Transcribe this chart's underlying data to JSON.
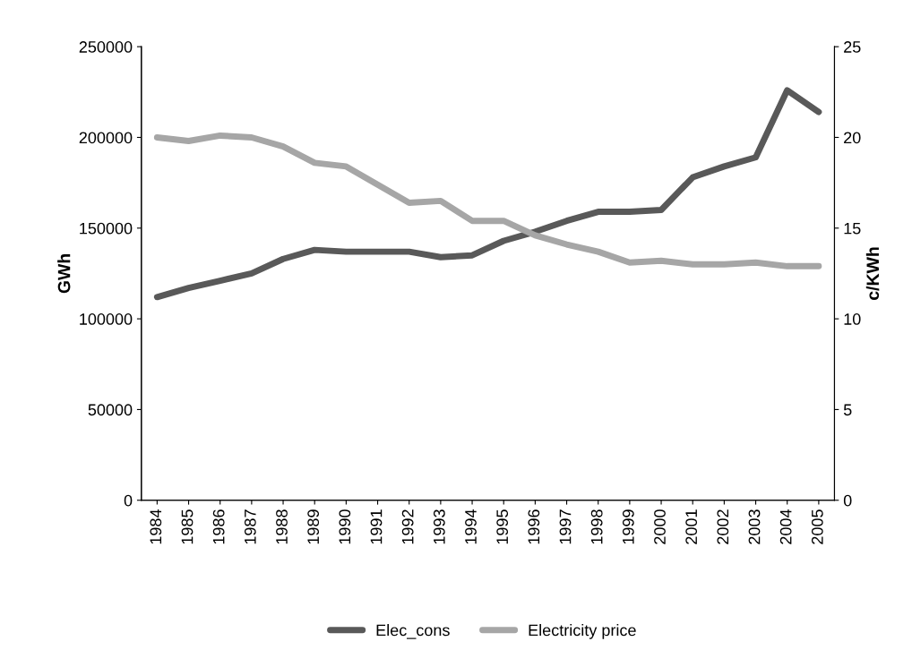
{
  "chart_data": {
    "type": "line",
    "ylabel": "GWh",
    "y2label": "c/KWh",
    "categories": [
      "1984",
      "1985",
      "1986",
      "1987",
      "1988",
      "1989",
      "1990",
      "1991",
      "1992",
      "1993",
      "1994",
      "1995",
      "1996",
      "1997",
      "1998",
      "1999",
      "2000",
      "2001",
      "2002",
      "2003",
      "2004",
      "2005"
    ],
    "series": [
      {
        "name": "Elec_cons",
        "color": "#595959",
        "values": [
          112000,
          117000,
          121000,
          125000,
          133000,
          138000,
          137000,
          137000,
          137000,
          134000,
          135000,
          143000,
          148000,
          154000,
          159000,
          159000,
          160000,
          178000,
          184000,
          189000,
          226000,
          214000
        ]
      },
      {
        "name": "Electricity price",
        "color": "#a6a6a6",
        "axis": "y2",
        "values": [
          20.0,
          19.8,
          20.1,
          20.0,
          19.5,
          18.6,
          18.4,
          17.4,
          16.4,
          16.5,
          15.4,
          15.4,
          14.6,
          14.1,
          13.7,
          13.1,
          13.2,
          13.0,
          13.0,
          13.1,
          12.9,
          12.9
        ]
      }
    ],
    "ylim": [
      0,
      250000
    ],
    "yticks": [
      0,
      50000,
      100000,
      150000,
      200000,
      250000
    ],
    "y2lim": [
      0,
      25
    ],
    "y2ticks": [
      0,
      5,
      10,
      15,
      20,
      25
    ],
    "grid": false,
    "legend": "bottom",
    "marker": "none",
    "line_style": "solid"
  }
}
